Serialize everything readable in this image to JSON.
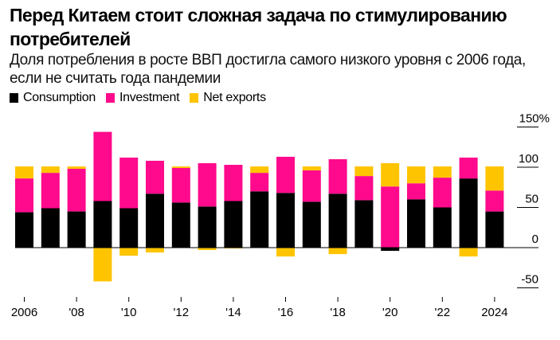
{
  "header": {
    "title": "Перед Китаем стоит сложная задача по стимулированию потребителей",
    "subtitle": "Доля потребления в росте ВВП достигла самого низкого уровня с 2006 года, если не считать года пандемии"
  },
  "legend": [
    {
      "label": "Consumption",
      "color": "#000000"
    },
    {
      "label": "Investment",
      "color": "#FF0A8C"
    },
    {
      "label": "Net exports",
      "color": "#FFC400"
    }
  ],
  "chart_data": {
    "type": "bar",
    "stacked": true,
    "title": "Перед Китаем стоит сложная задача по стимулированию потребителей",
    "subtitle": "Доля потребления в росте ВВП достигла самого низкого уровня с 2006 года, если не считать года пандемии",
    "xlabel": "",
    "ylabel": "",
    "categories": [
      2006,
      2007,
      2008,
      2009,
      2010,
      2011,
      2012,
      2013,
      2014,
      2015,
      2016,
      2017,
      2018,
      2019,
      2020,
      2021,
      2022,
      2023,
      2024
    ],
    "x_tick_labels": [
      {
        "year": 2006,
        "label": "2006"
      },
      {
        "year": 2008,
        "label": "'08"
      },
      {
        "year": 2010,
        "label": "'10"
      },
      {
        "year": 2012,
        "label": "'12"
      },
      {
        "year": 2014,
        "label": "'14"
      },
      {
        "year": 2016,
        "label": "'16"
      },
      {
        "year": 2018,
        "label": "'18"
      },
      {
        "year": 2020,
        "label": "'20"
      },
      {
        "year": 2022,
        "label": "'22"
      },
      {
        "year": 2024,
        "label": "2024"
      }
    ],
    "series": [
      {
        "name": "Consumption",
        "color": "#000000",
        "values": [
          44,
          49,
          45,
          58,
          49,
          67,
          56,
          51,
          58,
          70,
          68,
          57,
          67,
          59,
          -4,
          60,
          50,
          86,
          45
        ]
      },
      {
        "name": "Investment",
        "color": "#FF0A8C",
        "values": [
          42,
          44,
          53,
          86,
          63,
          41,
          43,
          54,
          45,
          23,
          45,
          39,
          43,
          30,
          76,
          20,
          37,
          26,
          26
        ]
      },
      {
        "name": "Net exports",
        "color": "#FFC400",
        "values": [
          15,
          8,
          3,
          -42,
          -10,
          -6,
          2,
          -3,
          -1,
          8,
          -11,
          5,
          -8,
          12,
          29,
          21,
          14,
          -11,
          30
        ]
      }
    ],
    "y_ticks": [
      {
        "value": 150,
        "label": "150%"
      },
      {
        "value": 100,
        "label": "100"
      },
      {
        "value": 50,
        "label": "50"
      },
      {
        "value": 0,
        "label": "0"
      },
      {
        "value": -50,
        "label": "-50"
      }
    ],
    "ylim": [
      -50,
      150
    ],
    "y_axis_position": "right",
    "legend_position": "top-left",
    "grid": false
  }
}
